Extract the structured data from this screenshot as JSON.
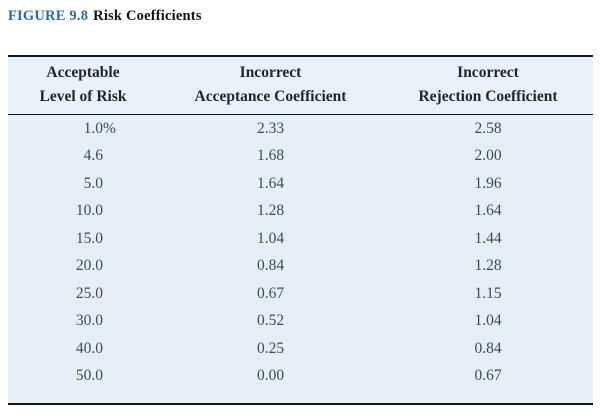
{
  "figure": {
    "label": "FIGURE 9.8",
    "title": "Risk Coefficients"
  },
  "table": {
    "columns": [
      {
        "line1": "Acceptable",
        "line2": "Level of Risk"
      },
      {
        "line1": "Incorrect",
        "line2": "Acceptance Coefficient"
      },
      {
        "line1": "Incorrect",
        "line2": "Rejection Coefficient"
      }
    ],
    "rows": [
      {
        "risk": "1.0",
        "risk_suffix": "%",
        "acceptance": "2.33",
        "rejection": "2.58"
      },
      {
        "risk": "4.6",
        "risk_suffix": "",
        "acceptance": "1.68",
        "rejection": "2.00"
      },
      {
        "risk": "5.0",
        "risk_suffix": "",
        "acceptance": "1.64",
        "rejection": "1.96"
      },
      {
        "risk": "10.0",
        "risk_suffix": "",
        "acceptance": "1.28",
        "rejection": "1.64"
      },
      {
        "risk": "15.0",
        "risk_suffix": "",
        "acceptance": "1.04",
        "rejection": "1.44"
      },
      {
        "risk": "20.0",
        "risk_suffix": "",
        "acceptance": "0.84",
        "rejection": "1.28"
      },
      {
        "risk": "25.0",
        "risk_suffix": "",
        "acceptance": "0.67",
        "rejection": "1.15"
      },
      {
        "risk": "30.0",
        "risk_suffix": "",
        "acceptance": "0.52",
        "rejection": "1.04"
      },
      {
        "risk": "40.0",
        "risk_suffix": "",
        "acceptance": "0.25",
        "rejection": "0.84"
      },
      {
        "risk": "50.0",
        "risk_suffix": "",
        "acceptance": "0.00",
        "rejection": "0.67"
      }
    ]
  },
  "colors": {
    "table_background": "#e6eff8",
    "header_background": "#e9f1f9",
    "rule": "#16161d",
    "figure_label_blue": "#2b6aa9",
    "header_text": "#1e2636",
    "data_text": "#3c4962"
  }
}
